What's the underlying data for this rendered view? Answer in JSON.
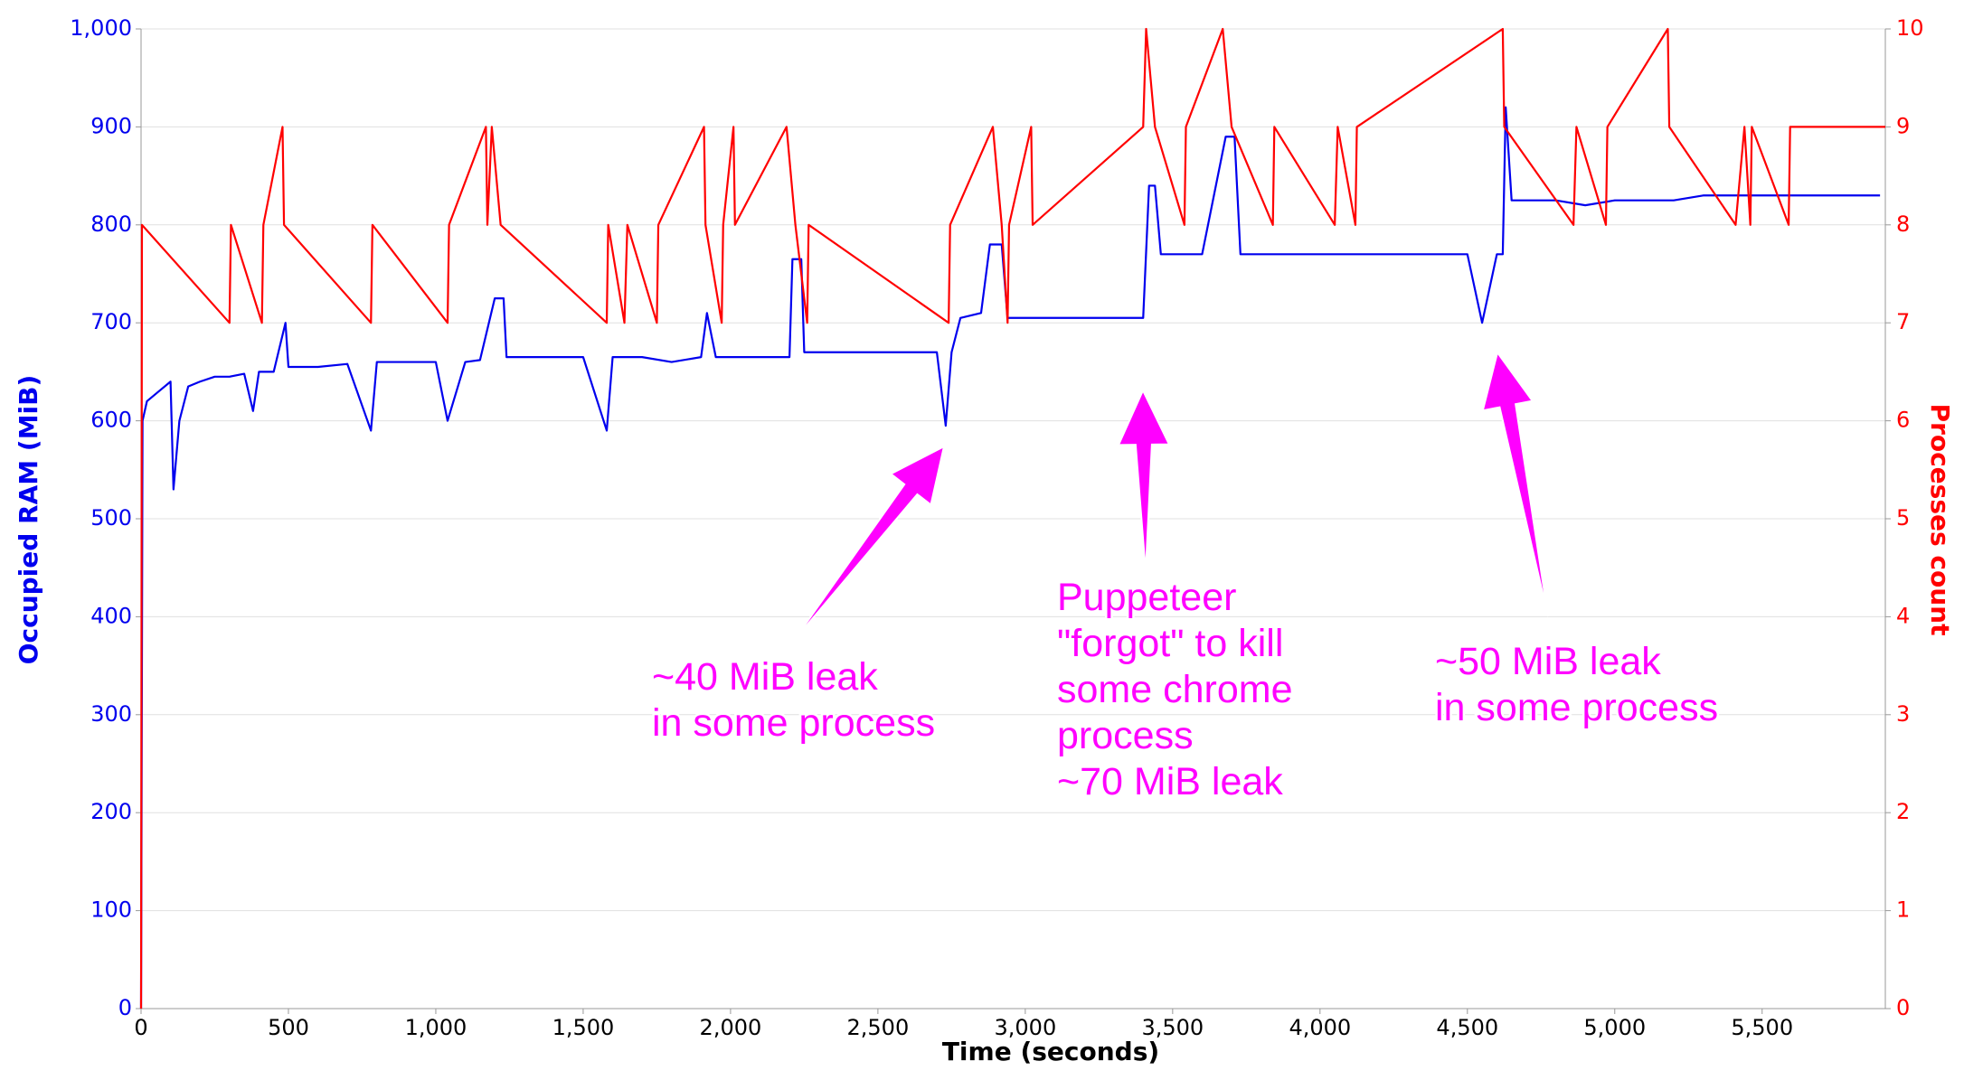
{
  "chart_data": {
    "type": "line",
    "xlabel": "Time (seconds)",
    "ylabel": "Occupied RAM (MiB)",
    "y2label": "Processes count",
    "xlim": [
      0,
      5918
    ],
    "ylim": [
      0,
      1000
    ],
    "y2lim": [
      0,
      10
    ],
    "xticks": [
      0,
      500,
      {
        "value": 1000,
        "label": "1,000"
      },
      {
        "value": 1500,
        "label": "1,500"
      },
      {
        "value": 2000,
        "label": "2,000"
      },
      {
        "value": 2500,
        "label": "2,500"
      },
      {
        "value": 3000,
        "label": "3,000"
      },
      {
        "value": 3500,
        "label": "3,500"
      },
      {
        "value": 4000,
        "label": "4,000"
      },
      {
        "value": 4500,
        "label": "4,500"
      },
      {
        "value": 5000,
        "label": "5,000"
      },
      {
        "value": 5500,
        "label": "5,500"
      }
    ],
    "yticks": [
      0,
      100,
      200,
      300,
      400,
      500,
      600,
      700,
      800,
      900,
      {
        "value": 1000,
        "label": "1,000"
      }
    ],
    "y2ticks": [
      0,
      1,
      2,
      3,
      4,
      5,
      6,
      7,
      8,
      9,
      10
    ],
    "grid": true,
    "series": [
      {
        "color": "#0000ee",
        "x": [
          0,
          5,
          20,
          60,
          100,
          110,
          130,
          160,
          200,
          250,
          300,
          350,
          380,
          400,
          450,
          490,
          500,
          600,
          700,
          780,
          800,
          900,
          1000,
          1040,
          1100,
          1150,
          1200,
          1230,
          1240,
          1300,
          1400,
          1500,
          1580,
          1600,
          1700,
          1800,
          1900,
          1920,
          1950,
          2000,
          2100,
          2200,
          2210,
          2240,
          2250,
          2300,
          2400,
          2500,
          2600,
          2700,
          2730,
          2750,
          2780,
          2850,
          2880,
          2920,
          2940,
          3000,
          3100,
          3200,
          3300,
          3400,
          3420,
          3440,
          3460,
          3500,
          3600,
          3680,
          3710,
          3730,
          3800,
          3900,
          4000,
          4100,
          4200,
          4300,
          4400,
          4500,
          4550,
          4600,
          4620,
          4630,
          4650,
          4700,
          4800,
          4900,
          5000,
          5100,
          5200,
          5300,
          5400,
          5500,
          5600,
          5700,
          5800,
          5900
        ],
        "values": [
          0,
          600,
          620,
          630,
          640,
          530,
          600,
          635,
          640,
          645,
          645,
          648,
          610,
          650,
          650,
          700,
          655,
          655,
          658,
          590,
          660,
          660,
          660,
          600,
          660,
          662,
          725,
          725,
          665,
          665,
          665,
          665,
          590,
          665,
          665,
          660,
          665,
          710,
          665,
          665,
          665,
          665,
          765,
          765,
          670,
          670,
          670,
          670,
          670,
          670,
          595,
          670,
          705,
          710,
          780,
          780,
          705,
          705,
          705,
          705,
          705,
          705,
          840,
          840,
          770,
          770,
          770,
          890,
          890,
          770,
          770,
          770,
          770,
          770,
          770,
          770,
          770,
          770,
          700,
          770,
          770,
          920,
          825,
          825,
          825,
          820,
          825,
          825,
          825,
          830,
          830,
          830,
          830,
          830,
          830,
          830
        ]
      },
      {
        "color": "#ff0000",
        "axis": "y2",
        "x": [
          0,
          3,
          300,
          305,
          410,
          415,
          480,
          485,
          780,
          785,
          1040,
          1045,
          1170,
          1175,
          1190,
          1220,
          1580,
          1585,
          1640,
          1650,
          1750,
          1755,
          1910,
          1915,
          1970,
          1975,
          2010,
          2015,
          2190,
          2220,
          2260,
          2265,
          2740,
          2745,
          2890,
          2920,
          2940,
          2945,
          3020,
          3025,
          3400,
          3410,
          3440,
          3540,
          3545,
          3670,
          3700,
          3840,
          3845,
          4050,
          4060,
          4120,
          4125,
          4620,
          4625,
          4860,
          4870,
          4970,
          4975,
          5180,
          5185,
          5410,
          5440,
          5460,
          5465,
          5590,
          5595,
          5918
        ],
        "values": [
          0,
          8,
          7,
          8,
          7,
          8,
          9,
          8,
          7,
          8,
          7,
          8,
          9,
          8,
          9,
          8,
          7,
          8,
          7,
          8,
          7,
          8,
          9,
          8,
          7,
          8,
          9,
          8,
          9,
          8,
          7,
          8,
          7,
          8,
          9,
          8,
          7,
          8,
          9,
          8,
          9,
          10,
          9,
          8,
          9,
          10,
          9,
          8,
          9,
          8,
          9,
          8,
          9,
          10,
          9,
          8,
          9,
          8,
          9,
          10,
          9,
          8,
          9,
          8,
          9,
          8,
          9,
          9
        ]
      }
    ],
    "annotations": [
      [
        "~40 MiB leak",
        "in some process"
      ],
      [
        "Puppeteer",
        "\"forgot\" to kill",
        "some chrome",
        "process",
        "~70 MiB leak"
      ],
      [
        "~50 MiB leak",
        "in some process"
      ]
    ]
  }
}
